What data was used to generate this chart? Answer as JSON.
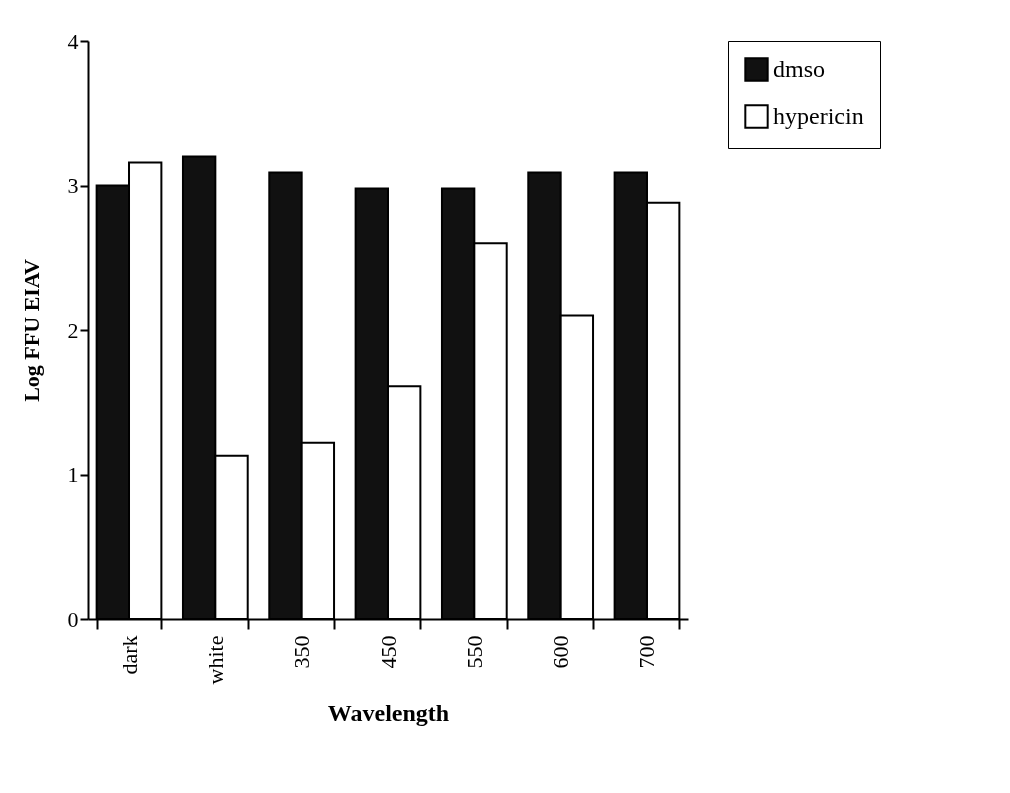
{
  "chart_data": {
    "type": "bar",
    "xlabel": "Wavelength",
    "ylabel": "Log FFU EIAV",
    "categories": [
      "dark",
      "white",
      "350",
      "450",
      "550",
      "600",
      "700"
    ],
    "series": [
      {
        "name": "dmso",
        "color": "#111111",
        "values": [
          3.0,
          3.2,
          3.09,
          2.98,
          2.98,
          3.09,
          3.09
        ]
      },
      {
        "name": "hypericin",
        "color": "#ffffff",
        "values": [
          3.16,
          1.13,
          1.22,
          1.61,
          2.6,
          2.1,
          2.88
        ]
      }
    ],
    "ylim": [
      0,
      4
    ],
    "yticks": [
      0,
      1,
      2,
      3,
      4
    ],
    "grid": false,
    "legend": "top right"
  }
}
